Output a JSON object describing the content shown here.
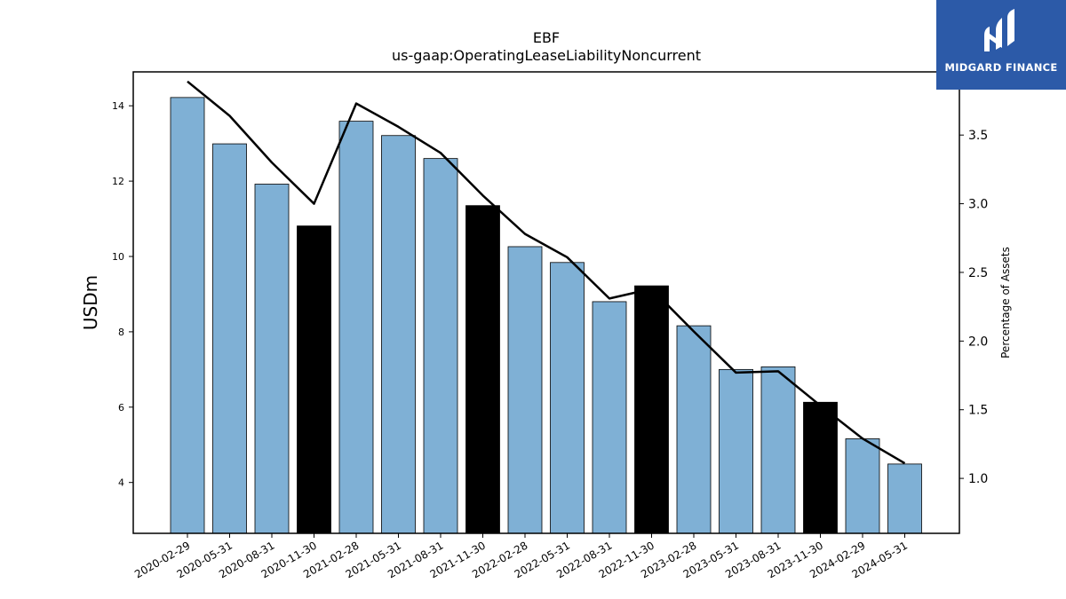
{
  "logo": {
    "text": "MIDGARD FINANCE",
    "icon": "midgard-logo-icon"
  },
  "chart_data": {
    "type": "bar",
    "title": "EBF",
    "subtitle": "us-gaap:OperatingLeaseLiabilityNoncurrent",
    "ylabel": "USDm",
    "y2label": "Percentage of Assets",
    "ylim": [
      2.65,
      14.9
    ],
    "y2lim": [
      0.6,
      3.96
    ],
    "yticks": [
      4,
      6,
      8,
      10,
      12,
      14
    ],
    "y2ticks": [
      1.0,
      1.5,
      2.0,
      2.5,
      3.0,
      3.5
    ],
    "categories": [
      "2020-02-29",
      "2020-05-31",
      "2020-08-31",
      "2020-11-30",
      "2021-02-28",
      "2021-05-31",
      "2021-08-31",
      "2021-11-30",
      "2022-02-28",
      "2022-05-31",
      "2022-08-31",
      "2022-11-30",
      "2023-02-28",
      "2023-05-31",
      "2023-08-31",
      "2023-11-30",
      "2024-02-29",
      "2024-05-31"
    ],
    "series": [
      {
        "type": "bar",
        "axis": "left",
        "values": [
          14.22,
          12.99,
          11.92,
          10.81,
          13.59,
          13.21,
          12.6,
          11.35,
          10.26,
          9.84,
          8.8,
          9.22,
          8.16,
          7.0,
          7.07,
          6.13,
          5.16,
          4.49
        ],
        "colors": [
          "#7fb0d5",
          "#7fb0d5",
          "#7fb0d5",
          "#000000",
          "#7fb0d5",
          "#7fb0d5",
          "#7fb0d5",
          "#000000",
          "#7fb0d5",
          "#7fb0d5",
          "#7fb0d5",
          "#000000",
          "#7fb0d5",
          "#7fb0d5",
          "#7fb0d5",
          "#000000",
          "#7fb0d5",
          "#7fb0d5"
        ]
      },
      {
        "type": "line",
        "axis": "right",
        "color": "#000000",
        "values": [
          3.89,
          3.64,
          3.3,
          3.0,
          3.73,
          3.56,
          3.37,
          3.06,
          2.78,
          2.61,
          2.31,
          2.38,
          2.07,
          1.77,
          1.78,
          1.53,
          1.29,
          1.11
        ]
      }
    ],
    "grid": false,
    "legend": "none"
  }
}
